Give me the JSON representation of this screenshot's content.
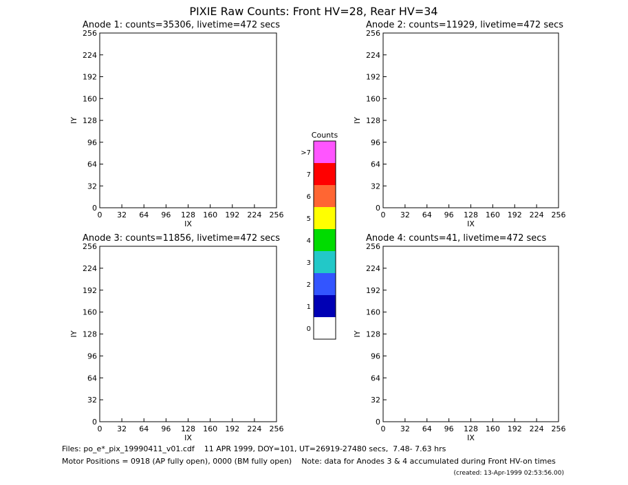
{
  "page": {
    "title": "PIXIE Raw Counts:  Front HV=28, Rear HV=34",
    "notes": [
      "Files: po_e*_pix_19990411_v01.cdf    11 APR 1999, DOY=101, UT=26919-27480 secs,  7.48- 7.63 hrs",
      "Motor Positions = 0918 (AP fully open), 0000 (BM fully open)    Note: data for Anodes 3 & 4 accumulated during Front HV-on times",
      "(created: 13-Apr-1999 02:53:56.00)"
    ]
  },
  "chart_data": [
    {
      "type": "image",
      "title": "Anode 1: counts=35306, livetime=472 secs",
      "xlabel": "IX",
      "ylabel": "IY",
      "xlim": [
        0,
        256
      ],
      "ylim": [
        0,
        256
      ],
      "xticks": [
        0,
        32,
        64,
        96,
        128,
        160,
        192,
        224,
        256
      ],
      "yticks": [
        0,
        32,
        64,
        96,
        128,
        160,
        192,
        224,
        256
      ]
    },
    {
      "type": "image",
      "title": "Anode 2: counts=11929, livetime=472 secs",
      "xlabel": "IX",
      "ylabel": "IY",
      "xlim": [
        0,
        256
      ],
      "ylim": [
        0,
        256
      ],
      "xticks": [
        0,
        32,
        64,
        96,
        128,
        160,
        192,
        224,
        256
      ],
      "yticks": [
        0,
        32,
        64,
        96,
        128,
        160,
        192,
        224,
        256
      ]
    },
    {
      "type": "image",
      "title": "Anode 3: counts=11856, livetime=472 secs",
      "xlabel": "IX",
      "ylabel": "IY",
      "xlim": [
        0,
        256
      ],
      "ylim": [
        0,
        256
      ],
      "xticks": [
        0,
        32,
        64,
        96,
        128,
        160,
        192,
        224,
        256
      ],
      "yticks": [
        0,
        32,
        64,
        96,
        128,
        160,
        192,
        224,
        256
      ]
    },
    {
      "type": "image",
      "title": "Anode 4: counts=41, livetime=472 secs",
      "xlabel": "IX",
      "ylabel": "IY",
      "xlim": [
        0,
        256
      ],
      "ylim": [
        0,
        256
      ],
      "xticks": [
        0,
        32,
        64,
        96,
        128,
        160,
        192,
        224,
        256
      ],
      "yticks": [
        0,
        32,
        64,
        96,
        128,
        160,
        192,
        224,
        256
      ]
    },
    {
      "type": "colorbar",
      "title": "Counts",
      "categories": [
        "0",
        "1",
        "2",
        "3",
        "4",
        "5",
        "6",
        "7",
        ">7"
      ],
      "colors": [
        "#ffffff",
        "#0000b4",
        "#3355ff",
        "#22c8c8",
        "#00dc00",
        "#ffff00",
        "#ff6633",
        "#ff0000",
        "#ff55ff"
      ]
    }
  ]
}
